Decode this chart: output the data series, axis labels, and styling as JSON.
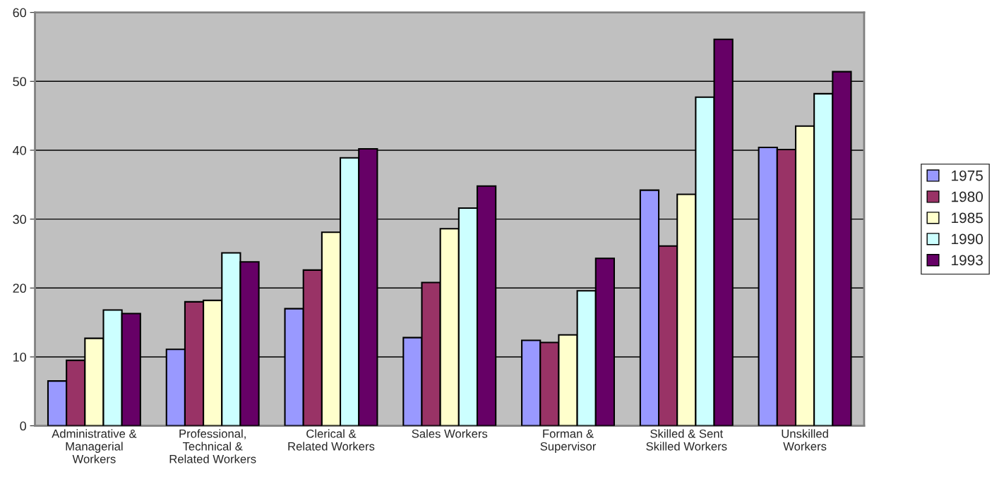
{
  "chart_data": {
    "type": "bar",
    "categories": [
      "Administrative &\nManagerial\nWorkers",
      "Professional,\nTechnical &\nRelated Workers",
      "Clerical &\nRelated Workers",
      "Sales Workers",
      "Forman &\nSupervisor",
      "Skilled & Sent\nSkilled Workers",
      "Unskilled\nWorkers"
    ],
    "series": [
      {
        "name": "1975",
        "color": "#9999ff",
        "values": [
          6.5,
          11.1,
          17.0,
          12.8,
          12.4,
          34.2,
          40.4
        ]
      },
      {
        "name": "1980",
        "color": "#993366",
        "values": [
          9.5,
          18.0,
          22.6,
          20.8,
          12.1,
          26.1,
          40.1
        ]
      },
      {
        "name": "1985",
        "color": "#ffffcc",
        "values": [
          12.7,
          18.2,
          28.1,
          28.6,
          13.2,
          33.6,
          43.5
        ]
      },
      {
        "name": "1990",
        "color": "#ccffff",
        "values": [
          16.8,
          25.1,
          38.9,
          31.6,
          19.6,
          47.7,
          48.2
        ]
      },
      {
        "name": "1993",
        "color": "#660066",
        "values": [
          16.3,
          23.8,
          40.2,
          34.8,
          24.3,
          56.1,
          51.4
        ]
      }
    ],
    "ylim": [
      0,
      60
    ],
    "yticks": [
      0,
      10,
      20,
      30,
      40,
      50,
      60
    ],
    "grid": "y",
    "legend": "right"
  }
}
